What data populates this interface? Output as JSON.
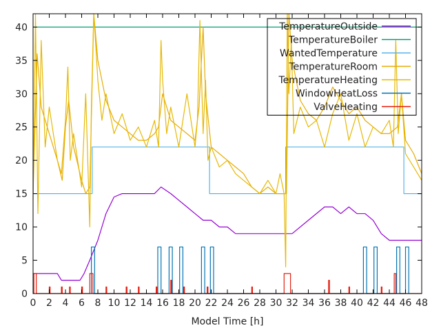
{
  "chart_data": {
    "type": "line",
    "title": "",
    "xlabel": "Model Time [h]",
    "ylabel": "",
    "xlim": [
      0,
      48
    ],
    "ylim": [
      0,
      42
    ],
    "xticks": [
      0,
      2,
      4,
      6,
      8,
      10,
      12,
      14,
      16,
      18,
      20,
      22,
      24,
      26,
      28,
      30,
      32,
      34,
      36,
      38,
      40,
      42,
      44,
      46,
      48
    ],
    "yticks": [
      0,
      5,
      10,
      15,
      20,
      25,
      30,
      35,
      40
    ],
    "grid": false,
    "legend_position": "top-right",
    "series": [
      {
        "name": "TemperatureOutside",
        "color": "#9400d3",
        "x": [
          0,
          3,
          3.5,
          5.8,
          6.3,
          7,
          8,
          9,
          10,
          11,
          12,
          14,
          15,
          15.8,
          17,
          19,
          20,
          21,
          22,
          23,
          24,
          25,
          26,
          27,
          28,
          30,
          31,
          32,
          34,
          36,
          37,
          38,
          39,
          40,
          41,
          42,
          43,
          44,
          45,
          46,
          47,
          48
        ],
        "y": [
          3,
          3,
          2,
          2,
          3,
          5,
          8,
          12,
          14.5,
          15,
          15,
          15,
          15,
          16,
          15,
          13,
          12,
          11,
          11,
          10,
          10,
          9,
          9,
          9,
          9,
          9,
          9,
          9,
          11,
          13,
          13,
          12,
          13,
          12,
          12,
          11,
          9,
          8,
          8,
          8,
          8,
          8
        ]
      },
      {
        "name": "TemperatureBoiler",
        "color": "#009e73",
        "x": [
          0,
          48
        ],
        "y": [
          40,
          40
        ]
      },
      {
        "name": "WantedTemperature",
        "color": "#56b4e9",
        "x": [
          0,
          7.3,
          7.3,
          21.8,
          21.8,
          31.2,
          31.2,
          45.8,
          45.8,
          48
        ],
        "y": [
          15,
          15,
          22,
          22,
          15,
          15,
          22,
          22,
          15,
          15
        ]
      },
      {
        "name": "TemperatureRoom",
        "color": "#e6ab02",
        "x": [
          0,
          0.5,
          1,
          2,
          3,
          3.6,
          4,
          4.4,
          5,
          6,
          6.5,
          7,
          7.5,
          8,
          9,
          10,
          11,
          12,
          13,
          14,
          15,
          15.5,
          16,
          17,
          18,
          19,
          20,
          20.5,
          21,
          21.3,
          22,
          23,
          24,
          25,
          26,
          27,
          28,
          29,
          30,
          31,
          31.3,
          31.6,
          32,
          33,
          34,
          35,
          36,
          37,
          38,
          39,
          40,
          41,
          42,
          43,
          44,
          45,
          45.5,
          46,
          47,
          48
        ],
        "y": [
          15,
          36,
          28,
          24,
          20,
          17,
          25,
          29,
          22,
          17,
          15,
          16,
          42,
          35,
          29,
          26,
          25,
          24,
          23,
          23,
          24,
          25,
          30,
          26,
          25,
          24,
          23,
          28,
          40,
          30,
          22,
          21,
          20,
          19,
          18,
          16,
          15,
          16,
          15,
          15,
          15,
          42,
          35,
          29,
          27,
          26,
          28,
          31,
          29,
          27,
          28,
          26,
          25,
          24,
          24,
          25,
          30,
          23,
          21,
          18
        ]
      },
      {
        "name": "TemperatureHeating",
        "color": "#e6b800",
        "x": [
          0,
          0.3,
          0.6,
          1,
          1.5,
          2,
          3,
          3.5,
          4,
          4.3,
          4.6,
          5,
          6,
          6.5,
          7,
          7.2,
          7.5,
          7.8,
          8,
          8.5,
          9,
          10,
          11,
          12,
          13,
          14,
          15,
          15.5,
          15.8,
          16,
          16.5,
          17,
          18,
          19,
          20,
          20.3,
          20.6,
          21,
          21.3,
          21.6,
          22,
          23,
          24,
          25,
          26,
          27,
          28,
          29,
          30,
          30.5,
          31,
          31.2,
          31.4,
          31.6,
          31.9,
          32.2,
          33,
          34,
          35,
          36,
          37,
          38,
          39,
          40,
          41,
          42,
          43,
          44,
          44.5,
          44.8,
          45.1,
          45.5,
          46,
          47,
          48
        ],
        "y": [
          14,
          42,
          12,
          38,
          22,
          28,
          20,
          18,
          26,
          34,
          20,
          24,
          16,
          30,
          10,
          28,
          42,
          36,
          32,
          26,
          30,
          24,
          27,
          23,
          25,
          22,
          26,
          22,
          38,
          32,
          24,
          28,
          22,
          30,
          22,
          26,
          41,
          24,
          32,
          20,
          22,
          19,
          20,
          18,
          17,
          16,
          15,
          17,
          15,
          18,
          15,
          4,
          42,
          30,
          38,
          24,
          28,
          25,
          26,
          22,
          27,
          30,
          23,
          27,
          22,
          25,
          24,
          26,
          22,
          38,
          24,
          30,
          21,
          19,
          17
        ]
      },
      {
        "name": "WindowHeatLoss",
        "color": "#0072b2",
        "x": [
          7.2,
          7.2,
          7.6,
          7.6,
          15.4,
          15.4,
          15.8,
          15.8,
          16.8,
          16.8,
          17.2,
          17.2,
          18.1,
          18.1,
          18.5,
          18.5,
          20.8,
          20.8,
          21.2,
          21.2,
          21.9,
          21.9,
          22.3,
          22.3,
          40.8,
          40.8,
          41.2,
          41.2,
          42.1,
          42.1,
          42.5,
          42.5,
          44.9,
          44.9,
          45.3,
          45.3,
          46.0,
          46.0,
          46.4,
          46.4
        ],
        "y": [
          0,
          7,
          7,
          0,
          0,
          7,
          7,
          0,
          0,
          7,
          7,
          0,
          0,
          7,
          7,
          0,
          0,
          7,
          7,
          0,
          0,
          7,
          7,
          0,
          0,
          7,
          7,
          0,
          0,
          7,
          7,
          0,
          0,
          7,
          7,
          0,
          0,
          7,
          7,
          0
        ]
      },
      {
        "name": "ValveHeating",
        "color": "#e51e10",
        "x": [
          0,
          0.1,
          0.1,
          0.4,
          0.4,
          2.0,
          2.0,
          2.1,
          2.1,
          3.5,
          3.5,
          3.6,
          3.6,
          4.5,
          4.5,
          4.6,
          4.6,
          6.0,
          6.0,
          6.1,
          6.1,
          7.0,
          7.0,
          7.4,
          7.4,
          9.0,
          9.0,
          9.1,
          9.1,
          11.5,
          11.5,
          11.6,
          11.6,
          13.0,
          13.0,
          13.1,
          13.1,
          15.2,
          15.2,
          15.3,
          15.3,
          17.0,
          17.0,
          17.1,
          17.1,
          18.6,
          18.6,
          18.7,
          18.7,
          21.5,
          21.5,
          21.6,
          21.6,
          27.0,
          27.0,
          27.1,
          27.1,
          31.0,
          31.0,
          31.8,
          31.8,
          36.5,
          36.5,
          36.6,
          36.6,
          39.0,
          39.0,
          39.1,
          39.1,
          43.0,
          43.0,
          43.1,
          43.1,
          44.6,
          44.6,
          44.8,
          44.8,
          48
        ],
        "y": [
          0,
          0,
          3,
          3,
          0,
          0,
          1,
          1,
          0,
          0,
          1,
          1,
          0,
          0,
          1,
          1,
          0,
          0,
          1,
          1,
          0,
          0,
          3,
          3,
          0,
          0,
          1,
          1,
          0,
          0,
          1,
          1,
          0,
          0,
          1,
          1,
          0,
          0,
          1,
          1,
          0,
          0,
          2,
          2,
          0,
          0,
          1,
          1,
          0,
          0,
          1,
          1,
          0,
          0,
          1,
          1,
          0,
          0,
          3,
          3,
          0,
          0,
          2,
          2,
          0,
          0,
          1,
          1,
          0,
          0,
          1,
          1,
          0,
          0,
          3,
          3,
          0,
          0
        ]
      }
    ]
  }
}
